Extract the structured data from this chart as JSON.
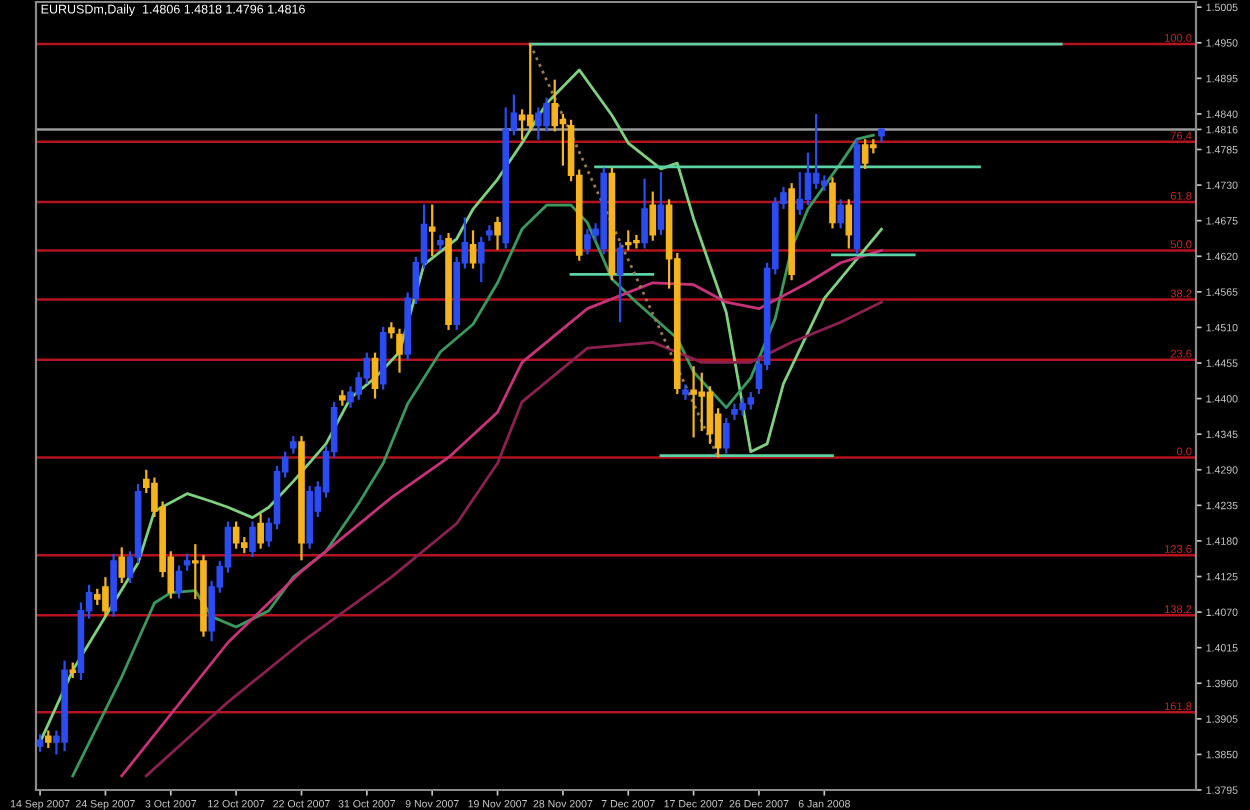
{
  "chart_data": {
    "type": "candlestick",
    "title": "EURUSDm,Daily  1.4806 1.4818 1.4796 1.4816",
    "categories": [
      "14 Sep 2007",
      null,
      null,
      null,
      null,
      null,
      null,
      null,
      "24 Sep 2007",
      null,
      null,
      null,
      null,
      null,
      null,
      null,
      "3 Oct 2007",
      null,
      null,
      null,
      null,
      null,
      null,
      null,
      "12 Oct 2007",
      null,
      null,
      null,
      null,
      null,
      null,
      null,
      "22 Oct 2007",
      null,
      null,
      null,
      null,
      null,
      null,
      null,
      "31 Oct 2007",
      null,
      null,
      null,
      null,
      null,
      null,
      null,
      "9 Nov 2007",
      null,
      null,
      null,
      null,
      null,
      null,
      null,
      "19 Nov 2007",
      null,
      null,
      null,
      null,
      null,
      null,
      null,
      "28 Nov 2007",
      null,
      null,
      null,
      null,
      null,
      null,
      null,
      "7 Dec 2007",
      null,
      null,
      null,
      null,
      null,
      null,
      null,
      "17 Dec 2007",
      null,
      null,
      null,
      null,
      null,
      null,
      null,
      "26 Dec 2007",
      null,
      null,
      null,
      null,
      null,
      null,
      null,
      "6 Jan 2008",
      null,
      null,
      null,
      null,
      null,
      null,
      null,
      null,
      null,
      null,
      null,
      null,
      null,
      null,
      null,
      null,
      null,
      null,
      null,
      null,
      null,
      null,
      null,
      null,
      null,
      null,
      null,
      null,
      null,
      null,
      null,
      null,
      null,
      null,
      null,
      null,
      null,
      null,
      null,
      null,
      null,
      null,
      null,
      null,
      null
    ],
    "ohlc": [
      [
        1.3863,
        1.3881,
        1.3854,
        1.3872
      ],
      [
        1.3878,
        1.3887,
        1.386,
        1.3869
      ],
      [
        1.3869,
        1.3887,
        1.385,
        1.3878
      ],
      [
        1.3869,
        1.3995,
        1.3855,
        1.398
      ],
      [
        1.398,
        1.3992,
        1.3968,
        1.3977
      ],
      [
        1.3977,
        1.4085,
        1.3965,
        1.4072
      ],
      [
        1.4072,
        1.4112,
        1.406,
        1.41
      ],
      [
        1.4097,
        1.4106,
        1.4081,
        1.409
      ],
      [
        1.4109,
        1.4124,
        1.4063,
        1.4072
      ],
      [
        1.4072,
        1.416,
        1.4063,
        1.4149
      ],
      [
        1.4155,
        1.417,
        1.4115,
        1.4124
      ],
      [
        1.4124,
        1.4164,
        1.4115,
        1.4155
      ],
      [
        1.4155,
        1.4268,
        1.4146,
        1.4256
      ],
      [
        1.4275,
        1.429,
        1.4254,
        1.4263
      ],
      [
        1.4269,
        1.4278,
        1.4217,
        1.4226
      ],
      [
        1.4232,
        1.4241,
        1.4124,
        1.4133
      ],
      [
        1.4155,
        1.4164,
        1.4091,
        1.41
      ],
      [
        1.41,
        1.4142,
        1.4091,
        1.4133
      ],
      [
        1.4143,
        1.416,
        1.4134,
        1.4149
      ],
      [
        1.4149,
        1.4175,
        1.409,
        1.4146
      ],
      [
        1.4149,
        1.4158,
        1.4032,
        1.4041
      ],
      [
        1.4041,
        1.4118,
        1.4025,
        1.4109
      ],
      [
        1.4109,
        1.4149,
        1.41,
        1.414
      ],
      [
        1.414,
        1.421,
        1.4131,
        1.4201
      ],
      [
        1.4201,
        1.421,
        1.4168,
        1.4177
      ],
      [
        1.4177,
        1.4186,
        1.4161,
        1.417
      ],
      [
        1.4164,
        1.421,
        1.4155,
        1.4201
      ],
      [
        1.4207,
        1.4222,
        1.4168,
        1.4177
      ],
      [
        1.418,
        1.4216,
        1.4171,
        1.4207
      ],
      [
        1.4207,
        1.4296,
        1.4198,
        1.4287
      ],
      [
        1.4287,
        1.4318,
        1.4278,
        1.4309
      ],
      [
        1.4324,
        1.4342,
        1.4315,
        1.4333
      ],
      [
        1.4333,
        1.4342,
        1.415,
        1.4177
      ],
      [
        1.4177,
        1.4265,
        1.4168,
        1.4256
      ],
      [
        1.4226,
        1.4272,
        1.4217,
        1.4263
      ],
      [
        1.4256,
        1.4327,
        1.4247,
        1.4318
      ],
      [
        1.4318,
        1.4395,
        1.4309,
        1.4386
      ],
      [
        1.4404,
        1.4413,
        1.4389,
        1.4398
      ],
      [
        1.4395,
        1.4419,
        1.4386,
        1.441
      ],
      [
        1.4407,
        1.4441,
        1.4398,
        1.4432
      ],
      [
        1.4432,
        1.4471,
        1.4423,
        1.4462
      ],
      [
        1.4462,
        1.4471,
        1.44,
        1.4416
      ],
      [
        1.4423,
        1.4511,
        1.4414,
        1.4502
      ],
      [
        1.4509,
        1.4518,
        1.4493,
        1.4502
      ],
      [
        1.4499,
        1.4508,
        1.444,
        1.4469
      ],
      [
        1.4469,
        1.4564,
        1.446,
        1.4555
      ],
      [
        1.4555,
        1.4619,
        1.4546,
        1.461
      ],
      [
        1.461,
        1.47,
        1.4601,
        1.4669
      ],
      [
        1.4665,
        1.47,
        1.462,
        1.4659
      ],
      [
        1.4638,
        1.4653,
        1.4629,
        1.4644
      ],
      [
        1.4647,
        1.4656,
        1.4506,
        1.4515
      ],
      [
        1.4515,
        1.4619,
        1.4506,
        1.461
      ],
      [
        1.461,
        1.468,
        1.4601,
        1.4641
      ],
      [
        1.4638,
        1.466,
        1.4601,
        1.461
      ],
      [
        1.461,
        1.465,
        1.458,
        1.4641
      ],
      [
        1.4653,
        1.4668,
        1.4644,
        1.4659
      ],
      [
        1.4672,
        1.4681,
        1.463,
        1.4653
      ],
      [
        1.4641,
        1.485,
        1.4632,
        1.4816
      ],
      [
        1.4816,
        1.487,
        1.4807,
        1.4841
      ],
      [
        1.4838,
        1.4847,
        1.48,
        1.4831
      ],
      [
        1.4838,
        1.4948,
        1.4813,
        1.4822
      ],
      [
        1.4822,
        1.485,
        1.48,
        1.4841
      ],
      [
        1.4822,
        1.4865,
        1.4813,
        1.4856
      ],
      [
        1.4856,
        1.4893,
        1.4813,
        1.4822
      ],
      [
        1.4831,
        1.484,
        1.476,
        1.4825
      ],
      [
        1.4822,
        1.4831,
        1.4736,
        1.4745
      ],
      [
        1.4745,
        1.4754,
        1.4613,
        1.4622
      ],
      [
        1.4632,
        1.4662,
        1.4623,
        1.4653
      ],
      [
        1.4653,
        1.4671,
        1.4644,
        1.4662
      ],
      [
        1.4632,
        1.4757,
        1.4623,
        1.4748
      ],
      [
        1.4748,
        1.4757,
        1.4583,
        1.4592
      ],
      [
        1.4592,
        1.4641,
        1.4518,
        1.4632
      ],
      [
        1.4641,
        1.466,
        1.4629,
        1.4638
      ],
      [
        1.4644,
        1.4653,
        1.4632,
        1.4641
      ],
      [
        1.4641,
        1.474,
        1.4632,
        1.4693
      ],
      [
        1.4699,
        1.472,
        1.4644,
        1.4653
      ],
      [
        1.4662,
        1.475,
        1.4653,
        1.4699
      ],
      [
        1.4699,
        1.4708,
        1.457,
        1.4616
      ],
      [
        1.4616,
        1.4625,
        1.4407,
        1.4416
      ],
      [
        1.4407,
        1.4422,
        1.4398,
        1.4413
      ],
      [
        1.4413,
        1.445,
        1.434,
        1.4407
      ],
      [
        1.441,
        1.444,
        1.435,
        1.4404
      ],
      [
        1.441,
        1.4419,
        1.433,
        1.4346
      ],
      [
        1.4376,
        1.4385,
        1.4309,
        1.4324
      ],
      [
        1.4324,
        1.437,
        1.4315,
        1.4361
      ],
      [
        1.4376,
        1.4392,
        1.4367,
        1.4383
      ],
      [
        1.4383,
        1.4401,
        1.4374,
        1.4392
      ],
      [
        1.4392,
        1.441,
        1.4383,
        1.4401
      ],
      [
        1.4416,
        1.4462,
        1.4407,
        1.4453
      ],
      [
        1.4453,
        1.461,
        1.4444,
        1.4601
      ],
      [
        1.4601,
        1.4711,
        1.4592,
        1.4702
      ],
      [
        1.4702,
        1.4727,
        1.4693,
        1.4718
      ],
      [
        1.4724,
        1.4733,
        1.4583,
        1.4592
      ],
      [
        1.4693,
        1.475,
        1.4684,
        1.4708
      ],
      [
        1.4708,
        1.478,
        1.4699,
        1.4748
      ],
      [
        1.4733,
        1.484,
        1.4724,
        1.4748
      ],
      [
        1.473,
        1.4745,
        1.4721,
        1.4736
      ],
      [
        1.4733,
        1.4742,
        1.4663,
        1.4672
      ],
      [
        1.4672,
        1.4708,
        1.4663,
        1.4699
      ],
      [
        1.4699,
        1.4708,
        1.4632,
        1.4653
      ],
      [
        1.4632,
        1.4801,
        1.4623,
        1.4792
      ],
      [
        1.4792,
        1.4801,
        1.4755,
        1.4764
      ],
      [
        1.4792,
        1.4801,
        1.4779,
        1.4788
      ],
      [
        1.4806,
        1.4818,
        1.4796,
        1.4816
      ],
      null,
      null,
      null,
      null,
      null,
      null,
      null,
      null,
      null,
      null,
      null,
      null,
      null,
      null,
      null,
      null,
      null,
      null,
      null,
      null,
      null,
      null,
      null,
      null,
      null,
      null,
      null,
      null,
      null,
      null,
      null,
      null,
      null,
      null,
      null,
      null,
      null,
      null
    ],
    "colors": [
      "#2b4cf0",
      "#f5b41e",
      "#2b4cf0",
      "#2b4cf0",
      "#f5b41e",
      "#2b4cf0",
      "#2b4cf0",
      "#f5b41e",
      "#f5b41e",
      "#2b4cf0",
      "#f5b41e",
      "#2b4cf0",
      "#2b4cf0",
      "#f5b41e",
      "#f5b41e",
      "#f5b41e",
      "#f5b41e",
      "#2b4cf0",
      "#2b4cf0",
      "#f5b41e",
      "#f5b41e",
      "#2b4cf0",
      "#2b4cf0",
      "#2b4cf0",
      "#f5b41e",
      "#f5b41e",
      "#2b4cf0",
      "#f5b41e",
      "#2b4cf0",
      "#2b4cf0",
      "#2b4cf0",
      "#2b4cf0",
      "#f5b41e",
      "#2b4cf0",
      "#2b4cf0",
      "#2b4cf0",
      "#2b4cf0",
      "#f5b41e",
      "#2b4cf0",
      "#2b4cf0",
      "#2b4cf0",
      "#f5b41e",
      "#2b4cf0",
      "#f5b41e",
      "#f5b41e",
      "#2b4cf0",
      "#2b4cf0",
      "#2b4cf0",
      "#f5b41e",
      "#2b4cf0",
      "#f5b41e",
      "#2b4cf0",
      "#2b4cf0",
      "#f5b41e",
      "#2b4cf0",
      "#2b4cf0",
      "#f5b41e",
      "#2b4cf0",
      "#2b4cf0",
      "#f5b41e",
      "#f5b41e",
      "#2b4cf0",
      "#2b4cf0",
      "#f5b41e",
      "#f5b41e",
      "#f5b41e",
      "#f5b41e",
      "#2b4cf0",
      "#2b4cf0",
      "#2b4cf0",
      "#f5b41e",
      "#2b4cf0",
      "#f5b41e",
      "#f5b41e",
      "#2b4cf0",
      "#f5b41e",
      "#2b4cf0",
      "#f5b41e",
      "#f5b41e",
      "#2b4cf0",
      "#f5b41e",
      "#f5b41e",
      "#f5b41e",
      "#f5b41e",
      "#2b4cf0",
      "#2b4cf0",
      "#2b4cf0",
      "#2b4cf0",
      "#2b4cf0",
      "#2b4cf0",
      "#2b4cf0",
      "#2b4cf0",
      "#f5b41e",
      "#2b4cf0",
      "#2b4cf0",
      "#2b4cf0",
      "#2b4cf0",
      "#f5b41e",
      "#2b4cf0",
      "#f5b41e",
      "#2b4cf0",
      "#f5b41e",
      "#f5b41e",
      "#2b4cf0",
      null,
      null,
      null,
      null,
      null,
      null,
      null,
      null,
      null,
      null,
      null,
      null,
      null,
      null,
      null,
      null,
      null,
      null,
      null,
      null,
      null,
      null,
      null,
      null,
      null,
      null,
      null,
      null,
      null,
      null,
      null,
      null,
      null,
      null,
      null,
      null,
      null,
      null
    ],
    "series": [
      {
        "type": "line",
        "color": "#7fd17f",
        "values": [
          1.3869,
          null,
          null,
          null,
          1.398,
          null,
          null,
          null,
          null,
          1.4084,
          null,
          null,
          1.4146,
          null,
          1.4226,
          null,
          null,
          null,
          1.4253,
          null,
          null,
          1.4241,
          null,
          1.4232,
          null,
          null,
          1.4216,
          null,
          1.4232,
          null,
          null,
          1.4272,
          null,
          null,
          null,
          1.433,
          null,
          null,
          1.4401,
          null,
          null,
          1.4432,
          null,
          null,
          1.4472,
          null,
          null,
          1.4607,
          null,
          null,
          null,
          1.4647,
          null,
          1.4693,
          null,
          null,
          1.4739,
          null,
          null,
          1.4795,
          null,
          null,
          1.4856,
          null,
          null,
          null,
          1.4908,
          null,
          null,
          null,
          1.4838,
          null,
          1.4795,
          null,
          null,
          null,
          1.4755,
          null,
          1.4764,
          null,
          1.4678,
          null,
          null,
          null,
          1.4533,
          null,
          null,
          1.4318,
          null,
          1.433,
          null,
          1.4423,
          null,
          null,
          null,
          null,
          1.4555,
          null,
          null,
          null,
          1.4616,
          null,
          null,
          1.4662,
          null,
          null,
          null,
          null,
          null,
          null,
          null,
          null,
          null,
          null,
          null,
          null,
          null,
          null,
          null,
          null,
          null,
          null,
          null,
          null,
          null,
          null,
          null,
          null,
          null,
          null,
          null,
          null,
          null,
          null,
          null,
          null,
          null,
          null,
          null,
          null,
          null,
          null
        ]
      },
      {
        "type": "line",
        "color": "#3a9a5e",
        "values": [
          null,
          null,
          null,
          null,
          1.3817,
          null,
          null,
          null,
          null,
          null,
          1.397,
          null,
          null,
          null,
          1.4084,
          null,
          1.41,
          null,
          null,
          1.4103,
          null,
          1.4063,
          null,
          null,
          1.4047,
          null,
          null,
          null,
          1.4072,
          null,
          null,
          1.4124,
          null,
          null,
          null,
          1.4164,
          null,
          null,
          null,
          1.4238,
          null,
          null,
          1.43,
          null,
          null,
          1.4392,
          null,
          null,
          null,
          1.4472,
          null,
          null,
          null,
          1.4515,
          null,
          null,
          1.4579,
          null,
          null,
          1.4662,
          null,
          null,
          1.4699,
          null,
          null,
          1.4699,
          null,
          1.4672,
          null,
          null,
          1.4585,
          null,
          null,
          1.4549,
          null,
          null,
          null,
          null,
          1.4493,
          null,
          1.4441,
          null,
          null,
          null,
          1.4386,
          null,
          null,
          1.4432,
          null,
          null,
          1.4524,
          null,
          1.4632,
          null,
          1.4693,
          null,
          null,
          null,
          1.4764,
          null,
          1.4801,
          null,
          1.4807,
          null,
          null,
          null,
          null,
          null,
          null,
          null,
          null,
          null,
          null,
          null,
          null,
          null,
          null,
          null,
          null,
          null,
          null,
          null,
          null,
          null,
          null,
          null,
          null,
          null,
          null,
          null,
          null,
          null,
          null,
          null,
          null,
          null,
          null,
          null,
          null,
          null,
          null,
          null
        ]
      },
      {
        "type": "line",
        "color": "#c8327a",
        "values": [
          null,
          null,
          null,
          null,
          null,
          null,
          null,
          null,
          null,
          null,
          1.3817,
          null,
          null,
          null,
          null,
          null,
          null,
          null,
          null,
          null,
          null,
          null,
          null,
          1.4023,
          null,
          null,
          null,
          null,
          null,
          null,
          null,
          null,
          1.4133,
          null,
          null,
          null,
          null,
          null,
          null,
          null,
          null,
          null,
          null,
          1.4247,
          null,
          null,
          null,
          null,
          null,
          null,
          1.4309,
          null,
          null,
          null,
          null,
          null,
          1.4379,
          null,
          null,
          1.4456,
          null,
          null,
          null,
          null,
          null,
          null,
          null,
          1.4539,
          null,
          null,
          null,
          null,
          null,
          null,
          null,
          1.4579,
          null,
          null,
          null,
          null,
          1.4576,
          null,
          null,
          null,
          1.4549,
          null,
          null,
          null,
          1.4539,
          null,
          null,
          null,
          null,
          null,
          1.4579,
          null,
          null,
          null,
          1.461,
          null,
          null,
          null,
          null,
          1.4629,
          null,
          null,
          null,
          null,
          null,
          null,
          null,
          null,
          null,
          null,
          null,
          null,
          null,
          null,
          null,
          null,
          null,
          null,
          null,
          null,
          null,
          null,
          null,
          null,
          null,
          null,
          null,
          null,
          null,
          null,
          null,
          null,
          null,
          null,
          null,
          null,
          null,
          null
        ]
      },
      {
        "type": "line",
        "color": "#8c2050",
        "values": [
          null,
          null,
          null,
          null,
          null,
          null,
          null,
          null,
          null,
          null,
          null,
          null,
          null,
          1.3817,
          null,
          null,
          null,
          null,
          null,
          null,
          null,
          null,
          null,
          1.3931,
          null,
          null,
          null,
          null,
          null,
          null,
          null,
          null,
          1.4023,
          null,
          null,
          null,
          null,
          null,
          null,
          null,
          null,
          null,
          null,
          1.4124,
          null,
          null,
          null,
          null,
          null,
          null,
          null,
          1.4207,
          null,
          null,
          null,
          null,
          1.43,
          null,
          null,
          1.4395,
          null,
          null,
          null,
          null,
          null,
          null,
          null,
          1.4478,
          null,
          null,
          null,
          null,
          null,
          null,
          null,
          1.4487,
          null,
          null,
          null,
          null,
          null,
          1.4456,
          null,
          null,
          null,
          null,
          null,
          1.4456,
          null,
          null,
          null,
          null,
          1.4487,
          null,
          null,
          null,
          null,
          null,
          1.4518,
          null,
          null,
          null,
          null,
          1.4549,
          null,
          null,
          null,
          null,
          null,
          null,
          null,
          null,
          null,
          null,
          null,
          null,
          null,
          null,
          null,
          null,
          null,
          null,
          null,
          null,
          null,
          null,
          null,
          null,
          null,
          null,
          null,
          null,
          null,
          null,
          null,
          null,
          null,
          null,
          null,
          null,
          null,
          null
        ]
      },
      {
        "type": "line",
        "color": "#5ad2a5",
        "values": [
          null,
          null,
          null,
          null,
          null,
          null,
          null,
          null,
          null,
          null,
          null,
          null,
          null,
          null,
          null,
          null,
          null,
          null,
          null,
          null,
          null,
          null,
          null,
          null,
          null,
          null,
          null,
          null,
          null,
          null,
          null,
          null,
          null,
          null,
          null,
          null,
          null,
          null,
          null,
          null,
          null,
          null,
          null,
          null,
          null,
          null,
          null,
          null,
          null,
          null,
          null,
          null,
          null,
          null,
          null,
          null,
          null,
          null,
          null,
          null,
          1.4948,
          null,
          null,
          null,
          null,
          null,
          null,
          null,
          null,
          null,
          null,
          null,
          null,
          null,
          null,
          null,
          null,
          null,
          null,
          null,
          null,
          null,
          null,
          null,
          null,
          null,
          null,
          null,
          null,
          null,
          null,
          null,
          null,
          null,
          null,
          null,
          null,
          null,
          null,
          null,
          null,
          null,
          null,
          null,
          null,
          null,
          null,
          null,
          null,
          null,
          null,
          null,
          null,
          null,
          null,
          null,
          null,
          null,
          null,
          null,
          null,
          null,
          null,
          null,
          null,
          1.4948,
          null,
          null,
          null,
          null,
          null,
          null,
          null,
          null,
          null,
          null,
          null,
          null,
          null,
          null,
          null,
          null
        ]
      },
      {
        "type": "line",
        "color": "#5ad2a5",
        "values": [
          null,
          null,
          null,
          null,
          null,
          null,
          null,
          null,
          null,
          null,
          null,
          null,
          null,
          null,
          null,
          null,
          null,
          null,
          null,
          null,
          null,
          null,
          null,
          null,
          null,
          null,
          null,
          null,
          null,
          null,
          null,
          null,
          null,
          null,
          null,
          null,
          null,
          null,
          null,
          null,
          null,
          null,
          null,
          null,
          null,
          null,
          null,
          null,
          null,
          null,
          null,
          null,
          null,
          null,
          null,
          null,
          null,
          null,
          null,
          null,
          null,
          null,
          null,
          null,
          null,
          null,
          null,
          null,
          1.4758,
          null,
          null,
          null,
          null,
          null,
          null,
          null,
          null,
          null,
          null,
          null,
          null,
          null,
          null,
          null,
          null,
          null,
          null,
          null,
          null,
          null,
          null,
          null,
          null,
          null,
          null,
          null,
          null,
          null,
          null,
          null,
          null,
          null,
          null,
          null,
          null,
          null,
          null,
          null,
          null,
          null,
          null,
          null,
          null,
          null,
          null,
          1.4758,
          null,
          null,
          null,
          null,
          null,
          null,
          null,
          null,
          null,
          null,
          null,
          null,
          null,
          null,
          null,
          null,
          null,
          null,
          null,
          null,
          null,
          null,
          null,
          null,
          null,
          null
        ]
      },
      {
        "type": "line",
        "color": "#5ad2a5",
        "values": [
          null,
          null,
          null,
          null,
          null,
          null,
          null,
          null,
          null,
          null,
          null,
          null,
          null,
          null,
          null,
          null,
          null,
          null,
          null,
          null,
          null,
          null,
          null,
          null,
          null,
          null,
          null,
          null,
          null,
          null,
          null,
          null,
          null,
          null,
          null,
          null,
          null,
          null,
          null,
          null,
          null,
          null,
          null,
          null,
          null,
          null,
          null,
          null,
          null,
          null,
          null,
          null,
          null,
          null,
          null,
          null,
          null,
          null,
          null,
          null,
          null,
          null,
          null,
          null,
          null,
          1.4592,
          null,
          null,
          null,
          null,
          null,
          null,
          null,
          null,
          null,
          1.4592,
          null,
          null,
          null,
          null,
          null,
          null,
          null,
          null,
          null,
          null,
          null,
          null,
          null,
          null,
          null,
          null,
          null,
          null,
          null,
          null,
          null,
          null,
          null,
          null,
          null,
          null,
          null,
          null,
          null,
          null,
          null,
          null,
          null,
          null,
          null,
          null,
          null,
          null,
          null,
          null,
          null,
          null,
          null,
          null,
          null,
          null,
          null,
          null,
          null,
          null,
          null,
          null,
          null,
          null,
          null,
          null,
          null,
          null,
          null,
          null,
          null,
          null,
          null,
          null,
          null,
          null
        ]
      },
      {
        "type": "line",
        "color": "#5ad2a5",
        "values": [
          null,
          null,
          null,
          null,
          null,
          null,
          null,
          null,
          null,
          null,
          null,
          null,
          null,
          null,
          null,
          null,
          null,
          null,
          null,
          null,
          null,
          null,
          null,
          null,
          null,
          null,
          null,
          null,
          null,
          null,
          null,
          null,
          null,
          null,
          null,
          null,
          null,
          null,
          null,
          null,
          null,
          null,
          null,
          null,
          null,
          null,
          null,
          null,
          null,
          null,
          null,
          null,
          null,
          null,
          null,
          null,
          null,
          null,
          null,
          null,
          null,
          null,
          null,
          null,
          null,
          null,
          null,
          null,
          null,
          null,
          null,
          null,
          null,
          null,
          null,
          null,
          null,
          null,
          null,
          null,
          null,
          null,
          null,
          null,
          null,
          null,
          null,
          null,
          null,
          null,
          null,
          null,
          null,
          null,
          null,
          null,
          null,
          1.4622,
          null,
          null,
          null,
          null,
          null,
          null,
          null,
          null,
          null,
          1.4622,
          null,
          null,
          null,
          null,
          null,
          null,
          null,
          null,
          null,
          null,
          null,
          null,
          null,
          null,
          null,
          null,
          null,
          null,
          null,
          null,
          null,
          null,
          null,
          null,
          null,
          null,
          null,
          null,
          null,
          null,
          null,
          null,
          null,
          null
        ]
      },
      {
        "type": "line",
        "color": "#5ad2a5",
        "values": [
          null,
          null,
          null,
          null,
          null,
          null,
          null,
          null,
          null,
          null,
          null,
          null,
          null,
          null,
          null,
          null,
          null,
          null,
          null,
          null,
          null,
          null,
          null,
          null,
          null,
          null,
          null,
          null,
          null,
          null,
          null,
          null,
          null,
          null,
          null,
          null,
          null,
          null,
          null,
          null,
          null,
          null,
          null,
          null,
          null,
          null,
          null,
          null,
          null,
          null,
          null,
          null,
          null,
          null,
          null,
          null,
          null,
          null,
          null,
          null,
          null,
          null,
          null,
          null,
          null,
          null,
          null,
          null,
          null,
          null,
          null,
          null,
          null,
          null,
          null,
          null,
          1.4312,
          null,
          null,
          null,
          null,
          null,
          null,
          null,
          null,
          null,
          null,
          null,
          null,
          null,
          null,
          null,
          null,
          null,
          null,
          null,
          null,
          1.4312,
          null,
          null,
          null,
          null,
          null,
          null,
          null,
          null,
          null,
          null,
          null,
          null,
          null,
          null,
          null,
          null,
          null,
          null,
          null,
          null,
          null,
          null,
          null,
          null,
          null,
          null,
          null,
          null,
          null,
          null,
          null,
          null,
          null,
          null,
          null,
          null,
          null,
          null,
          null,
          null,
          null,
          null,
          null,
          null
        ]
      },
      {
        "type": "line",
        "color": "#9c7b52",
        "line_style": "dotted",
        "values": [
          null,
          null,
          null,
          null,
          null,
          null,
          null,
          null,
          null,
          null,
          null,
          null,
          null,
          null,
          null,
          null,
          null,
          null,
          null,
          null,
          null,
          null,
          null,
          null,
          null,
          null,
          null,
          null,
          null,
          null,
          null,
          null,
          null,
          null,
          null,
          null,
          null,
          null,
          null,
          null,
          null,
          null,
          null,
          null,
          null,
          null,
          null,
          null,
          null,
          null,
          null,
          null,
          null,
          null,
          null,
          null,
          null,
          null,
          null,
          null,
          1.4948,
          null,
          null,
          null,
          null,
          null,
          null,
          null,
          null,
          null,
          null,
          null,
          null,
          null,
          null,
          null,
          null,
          null,
          null,
          null,
          null,
          null,
          null,
          1.4309,
          null,
          null,
          null,
          null,
          null,
          null,
          null,
          null,
          null,
          null,
          null,
          null,
          null,
          null,
          null,
          null,
          null,
          null,
          null,
          null,
          null,
          null,
          null,
          null,
          null,
          null,
          null,
          null,
          null,
          null,
          null,
          null,
          null,
          null,
          null,
          null,
          null,
          null,
          null,
          null,
          null,
          null,
          null,
          null,
          null,
          null,
          null,
          null,
          null,
          null,
          null,
          null,
          null,
          null,
          null,
          null,
          null,
          null
        ]
      }
    ],
    "ref_lines": [
      {
        "axis": "y",
        "value": 1.4948,
        "color": "#b3141e"
      },
      {
        "axis": "y",
        "value": 1.4797,
        "color": "#b3141e"
      },
      {
        "axis": "y",
        "value": 1.4704,
        "color": "#b3141e"
      },
      {
        "axis": "y",
        "value": 1.4629,
        "color": "#b3141e"
      },
      {
        "axis": "y",
        "value": 1.4553,
        "color": "#b3141e"
      },
      {
        "axis": "y",
        "value": 1.446,
        "color": "#b3141e"
      },
      {
        "axis": "y",
        "value": 1.4309,
        "color": "#b3141e"
      },
      {
        "axis": "y",
        "value": 1.4158,
        "color": "#b3141e"
      },
      {
        "axis": "y",
        "value": 1.4065,
        "color": "#b3141e"
      },
      {
        "axis": "y",
        "value": 1.3915,
        "color": "#b3141e"
      },
      {
        "axis": "y",
        "value": 1.4816,
        "color": "#9a9a9a"
      }
    ],
    "annotations": [
      {
        "text": "100.0",
        "y": 1.4948
      },
      {
        "text": "76.4",
        "y": 1.4797
      },
      {
        "text": "61.8",
        "y": 1.4704
      },
      {
        "text": "50.0",
        "y": 1.4629
      },
      {
        "text": "38.2",
        "y": 1.4553
      },
      {
        "text": "23.6",
        "y": 1.446
      },
      {
        "text": "0.0",
        "y": 1.4309
      },
      {
        "text": "123.6",
        "y": 1.4158
      },
      {
        "text": "138.2",
        "y": 1.4065
      },
      {
        "text": "161.8",
        "y": 1.3915
      }
    ],
    "ylim": [
      1.3795,
      1.5013
    ],
    "yticks": [
      1.5005,
      {
        "value": 1.495,
        "label": "1.4950"
      },
      1.4895,
      {
        "value": 1.484,
        "label": "1.4840"
      },
      {
        "value": 1.4816,
        "label": "1.4816"
      },
      1.4785,
      {
        "value": 1.473,
        "label": "1.4730"
      },
      1.4675,
      {
        "value": 1.462,
        "label": "1.4620"
      },
      1.4565,
      {
        "value": 1.451,
        "label": "1.4510"
      },
      1.4455,
      {
        "value": 1.44,
        "label": "1.4400"
      },
      1.4345,
      {
        "value": 1.429,
        "label": "1.4290"
      },
      1.4235,
      {
        "value": 1.418,
        "label": "1.4180"
      },
      1.4125,
      {
        "value": 1.407,
        "label": "1.4070"
      },
      1.4015,
      {
        "value": 1.396,
        "label": "1.3960"
      },
      1.3905,
      {
        "value": 1.385,
        "label": "1.3850"
      },
      1.3795
    ]
  }
}
